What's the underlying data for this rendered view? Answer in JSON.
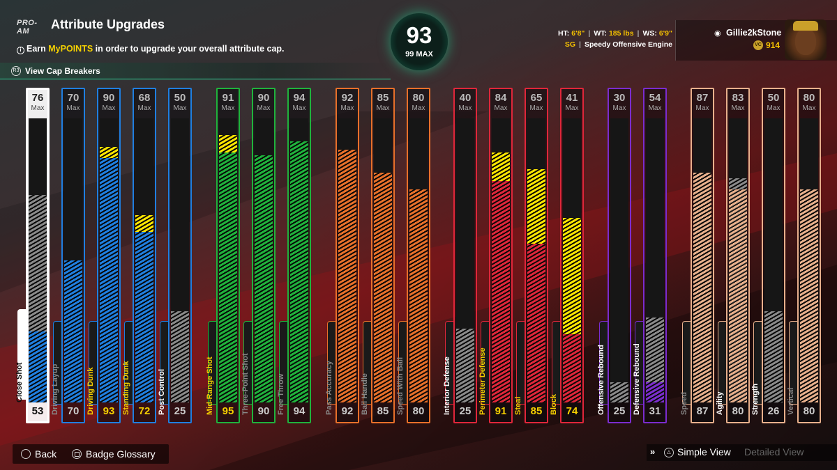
{
  "header": {
    "logo": "PRO-AM",
    "title": "Attribute Upgrades",
    "info_prefix": "Earn ",
    "info_highlight": "MyPOINTS",
    "info_suffix": " in order to upgrade your overall attribute cap.",
    "cap_breakers_button": "R3",
    "cap_breakers": "View Cap Breakers"
  },
  "overall": {
    "value": "93",
    "max_label": "99 MAX",
    "accent": "#1de29a"
  },
  "bio": {
    "ht_label": "HT:",
    "ht": "6'8\"",
    "wt_label": "WT:",
    "wt": "185 lbs",
    "ws_label": "WS:",
    "ws": "6'9\"",
    "position": "SG",
    "archetype": "Speedy Offensive Engine"
  },
  "player": {
    "name": "Gillie2kStone",
    "vc": "914",
    "platform_icon": "playstation-icon",
    "coin_icon": "vc-coin-icon"
  },
  "max_suffix": "Max",
  "groups": [
    {
      "name": "finishing",
      "color": "#1f7fe0"
    },
    {
      "name": "shooting",
      "color": "#1fb33c"
    },
    {
      "name": "playmaking",
      "color": "#e8702a"
    },
    {
      "name": "defense",
      "color": "#e0263a"
    },
    {
      "name": "rebounding",
      "color": "#7b2ccf"
    },
    {
      "name": "physicals",
      "color": "#e8b08c"
    }
  ],
  "attributes": [
    {
      "label": "Close Shot",
      "max": "76",
      "current": "53",
      "group": 0,
      "base": 25,
      "upg": 0,
      "sel": true,
      "gray": 73
    },
    {
      "label": "Driving Layup",
      "max": "70",
      "current": "70",
      "group": 0,
      "base": 50,
      "upg": 0
    },
    {
      "label": "Driving Dunk",
      "max": "90",
      "current": "93",
      "group": 0,
      "base": 86,
      "upg": 4,
      "up": true
    },
    {
      "label": "Standing Dunk",
      "max": "68",
      "current": "72",
      "group": 0,
      "base": 60,
      "upg": 6,
      "up": true
    },
    {
      "label": "Post Control",
      "max": "50",
      "current": "25",
      "group": 0,
      "base": 0,
      "upg": 0,
      "gray": 32,
      "wht": true
    },
    {
      "label": "Mid-Range Shot",
      "max": "91",
      "current": "95",
      "group": 1,
      "base": 88,
      "upg": 6,
      "up": true
    },
    {
      "label": "Three-Point Shot",
      "max": "90",
      "current": "90",
      "group": 1,
      "base": 87,
      "upg": 0
    },
    {
      "label": "Free Throw",
      "max": "94",
      "current": "94",
      "group": 1,
      "base": 92,
      "upg": 0
    },
    {
      "label": "Pass Accuracy",
      "max": "92",
      "current": "92",
      "group": 2,
      "base": 89,
      "upg": 0
    },
    {
      "label": "Ball Handle",
      "max": "85",
      "current": "85",
      "group": 2,
      "base": 81,
      "upg": 0
    },
    {
      "label": "Speed With Ball",
      "max": "80",
      "current": "80",
      "group": 2,
      "base": 75,
      "upg": 0
    },
    {
      "label": "Interior Defense",
      "max": "40",
      "current": "25",
      "group": 3,
      "base": 0,
      "upg": 0,
      "gray": 26,
      "wht": true
    },
    {
      "label": "Perimeter Defense",
      "max": "84",
      "current": "91",
      "group": 3,
      "base": 78,
      "upg": 10,
      "up": true
    },
    {
      "label": "Steal",
      "max": "65",
      "current": "85",
      "group": 3,
      "base": 56,
      "upg": 26,
      "up": true
    },
    {
      "label": "Block",
      "max": "41",
      "current": "74",
      "group": 3,
      "base": 24,
      "upg": 41,
      "up": true
    },
    {
      "label": "Offensive Rebound",
      "max": "30",
      "current": "25",
      "group": 4,
      "base": 0,
      "upg": 0,
      "gray": 7,
      "wht": true
    },
    {
      "label": "Defensive Rebound",
      "max": "54",
      "current": "31",
      "group": 4,
      "base": 7,
      "upg": 0,
      "gray": 30,
      "wht": true
    },
    {
      "label": "Speed",
      "max": "87",
      "current": "87",
      "group": 5,
      "base": 81,
      "upg": 0
    },
    {
      "label": "Agility",
      "max": "83",
      "current": "80",
      "group": 5,
      "base": 75,
      "upg": 0,
      "gray": 79,
      "wht": true
    },
    {
      "label": "Strength",
      "max": "50",
      "current": "26",
      "group": 5,
      "base": 0,
      "upg": 0,
      "gray": 32,
      "wht": true
    },
    {
      "label": "Vertical",
      "max": "80",
      "current": "80",
      "group": 5,
      "base": 75,
      "upg": 0
    }
  ],
  "footer": {
    "back": "Back",
    "glossary": "Badge Glossary",
    "simple_view": "Simple View",
    "detailed_view": "Detailed View"
  }
}
